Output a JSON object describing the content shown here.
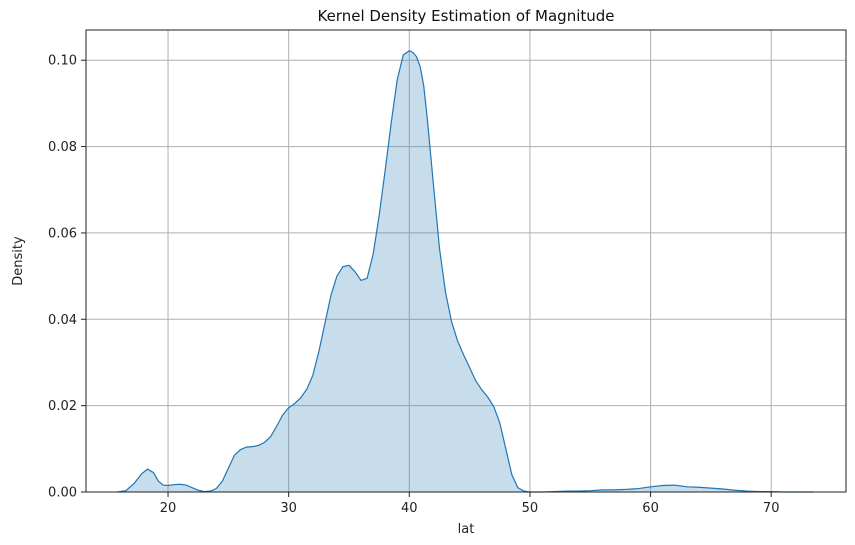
{
  "chart_data": {
    "type": "area",
    "title": "Kernel Density Estimation of Magnitude",
    "xlabel": "lat",
    "ylabel": "Density",
    "xlim": [
      13.2,
      76.2
    ],
    "ylim": [
      0,
      0.107
    ],
    "xticks": [
      20,
      30,
      40,
      50,
      60,
      70
    ],
    "yticks": [
      0.0,
      0.02,
      0.04,
      0.06,
      0.08,
      0.1
    ],
    "ytick_labels": [
      "0.00",
      "0.02",
      "0.04",
      "0.06",
      "0.08",
      "0.10"
    ],
    "grid": true,
    "line_color": "#1f77b4",
    "fill_color": "#1f77b4",
    "fill_opacity": 0.25,
    "x": [
      15.8,
      16.5,
      17.2,
      17.8,
      18.3,
      18.8,
      19.2,
      19.6,
      20.0,
      20.5,
      21.0,
      21.5,
      22.0,
      22.5,
      23.0,
      23.5,
      24.0,
      24.5,
      25.0,
      25.5,
      26.0,
      26.5,
      27.0,
      27.5,
      28.0,
      28.5,
      29.0,
      29.5,
      30.0,
      30.5,
      31.0,
      31.5,
      32.0,
      32.5,
      33.0,
      33.5,
      34.0,
      34.5,
      35.0,
      35.5,
      36.0,
      36.5,
      37.0,
      37.5,
      38.0,
      38.5,
      39.0,
      39.5,
      40.0,
      40.3,
      40.6,
      40.9,
      41.2,
      41.5,
      42.0,
      42.5,
      43.0,
      43.5,
      44.0,
      44.5,
      45.0,
      45.5,
      46.0,
      46.5,
      47.0,
      47.5,
      48.0,
      48.5,
      49.0,
      49.5,
      50.0,
      50.5,
      51.0,
      52.0,
      53.0,
      54.0,
      55.0,
      56.0,
      57.0,
      58.0,
      59.0,
      60.0,
      61.0,
      62.0,
      63.0,
      64.0,
      65.0,
      66.0,
      67.0,
      68.0,
      69.0,
      70.0,
      71.0,
      72.0,
      73.5
    ],
    "y": [
      0.0,
      0.0003,
      0.002,
      0.0042,
      0.0053,
      0.0045,
      0.0025,
      0.0016,
      0.0015,
      0.0017,
      0.0018,
      0.0016,
      0.001,
      0.0004,
      0.0001,
      0.0002,
      0.0008,
      0.0025,
      0.0055,
      0.0085,
      0.0098,
      0.0104,
      0.0105,
      0.0108,
      0.0115,
      0.0128,
      0.0152,
      0.0178,
      0.0195,
      0.0205,
      0.0218,
      0.0238,
      0.027,
      0.0325,
      0.039,
      0.0455,
      0.05,
      0.0522,
      0.0525,
      0.051,
      0.049,
      0.0495,
      0.055,
      0.064,
      0.0745,
      0.0855,
      0.0955,
      0.1012,
      0.1022,
      0.1018,
      0.1008,
      0.0985,
      0.094,
      0.0862,
      0.0712,
      0.0565,
      0.0463,
      0.0395,
      0.035,
      0.0318,
      0.0288,
      0.0258,
      0.0237,
      0.022,
      0.0198,
      0.016,
      0.01,
      0.004,
      0.001,
      0.0002,
      0.0,
      0.0,
      0.0,
      0.0001,
      0.0002,
      0.0002,
      0.0003,
      0.0005,
      0.0005,
      0.0006,
      0.0008,
      0.0012,
      0.0015,
      0.0016,
      0.0012,
      0.0011,
      0.0009,
      0.0007,
      0.0004,
      0.0002,
      0.0001,
      0.0001,
      0.0,
      0.0,
      0.0
    ]
  }
}
